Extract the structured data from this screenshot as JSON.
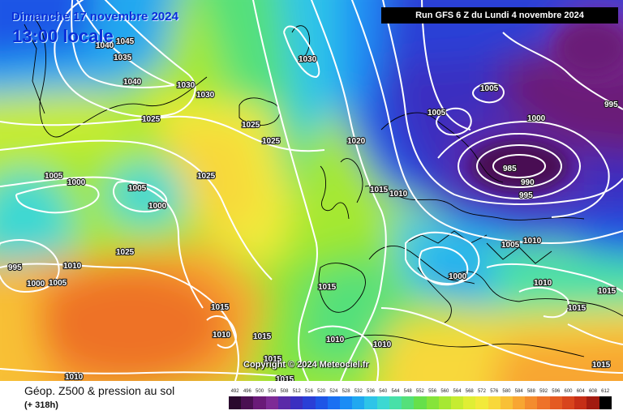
{
  "map": {
    "run_title": "Run GFS 6 Z du Lundi 4 novembre 2024",
    "valid_date": "Dimanche 17 novembre 2024",
    "valid_time": "13:00 locale",
    "copyright": "Copyright © 2024 Meteociel.fr",
    "product_title": "Géop. Z500 & pression au sol",
    "lead_time": "(+ 318h)",
    "isobar_labels": [
      "1030",
      "1040",
      "1045",
      "1035",
      "1040",
      "1030",
      "1025",
      "1030",
      "1025",
      "1025",
      "1025",
      "1020",
      "1005",
      "1000",
      "1005",
      "1000",
      "1025",
      "1015",
      "1010",
      "1015",
      "995",
      "1000",
      "1005",
      "1010",
      "1015",
      "1010",
      "1010",
      "1015",
      "1010",
      "1015",
      "1015",
      "1010",
      "1005",
      "1005",
      "1010",
      "1000",
      "985",
      "990",
      "995",
      "995",
      "1005",
      "1000",
      "1010",
      "1015",
      "1015",
      "1015"
    ],
    "pressure_low_center": "985",
    "legend": {
      "values": [
        492,
        496,
        500,
        504,
        508,
        512,
        516,
        520,
        524,
        528,
        532,
        536,
        540,
        544,
        548,
        552,
        556,
        560,
        564,
        568,
        572,
        576,
        580,
        584,
        588,
        592,
        596,
        600,
        604,
        608,
        612
      ],
      "colors": [
        "#2a0a2e",
        "#4a0f52",
        "#6a1a78",
        "#7e2b96",
        "#5a2aa8",
        "#3b2fc0",
        "#2a3fd6",
        "#1e55e6",
        "#1a70f2",
        "#1a8cf5",
        "#20a8f0",
        "#2ec4e8",
        "#3cd8d2",
        "#48e0a8",
        "#54e07a",
        "#66e04a",
        "#86e43a",
        "#a6e832",
        "#c6ec30",
        "#e0ee34",
        "#f2ea3a",
        "#f8d83a",
        "#f8c036",
        "#f8a632",
        "#f48c2e",
        "#ee7228",
        "#e45a22",
        "#d8441c",
        "#c62e16",
        "#a21a10",
        "#000000"
      ]
    }
  }
}
